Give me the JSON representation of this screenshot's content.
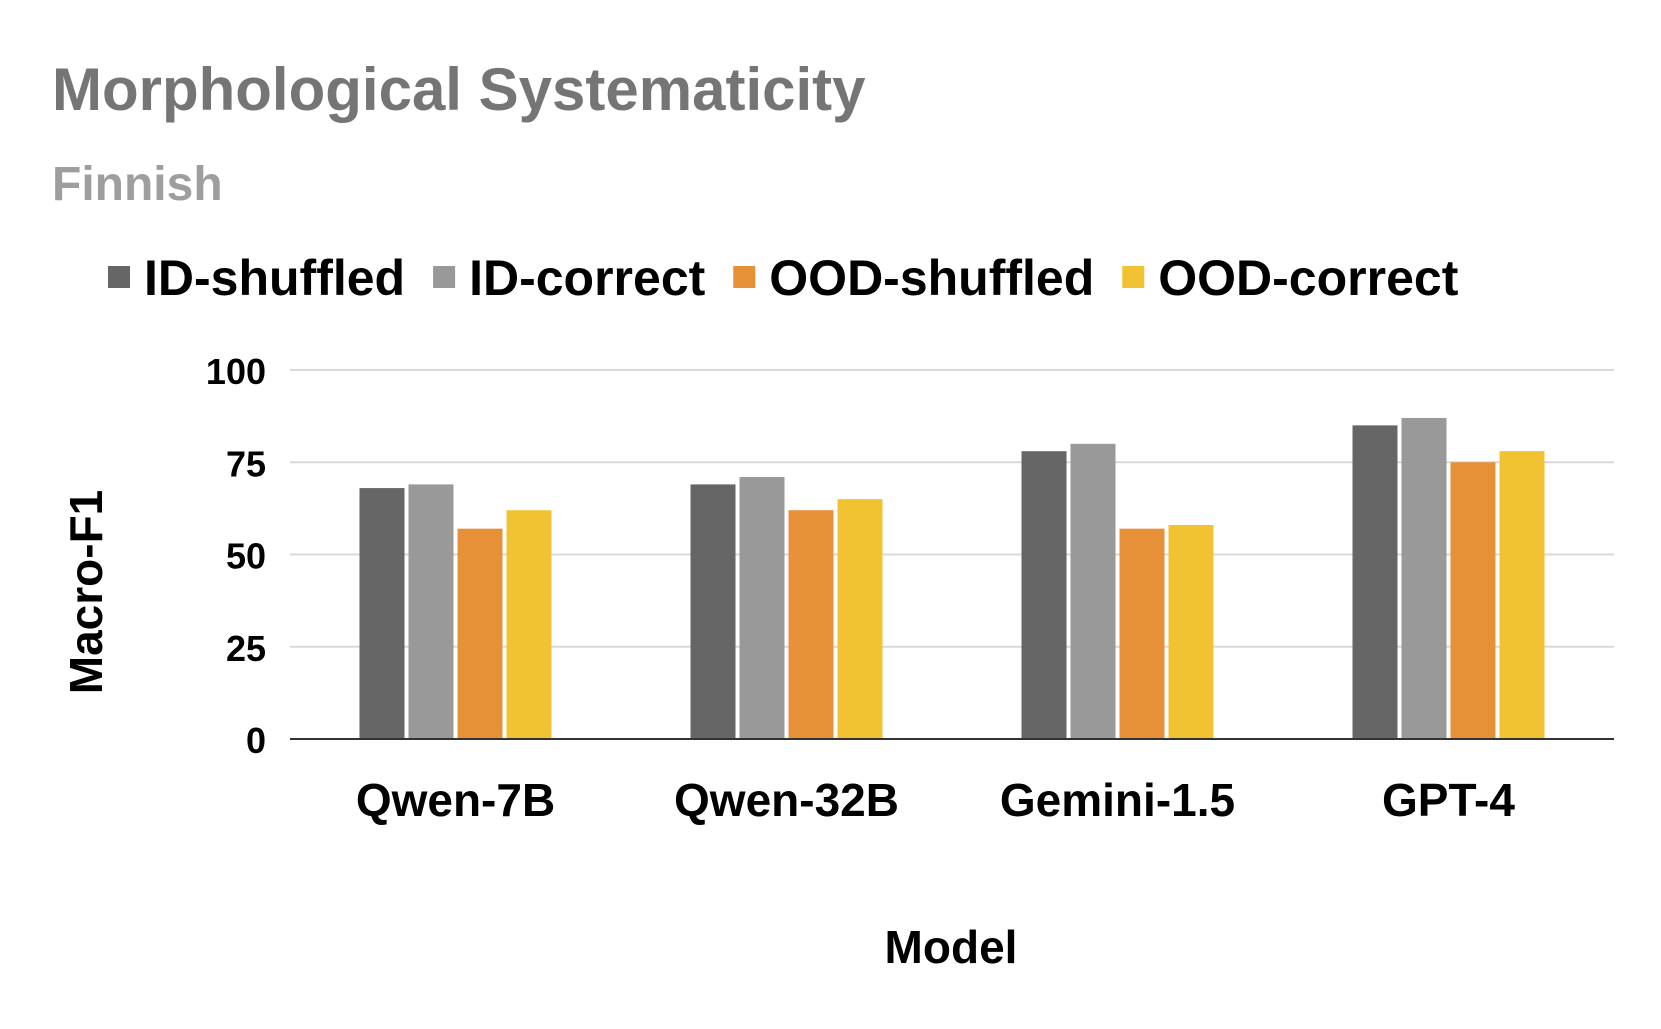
{
  "chart_data": {
    "type": "bar",
    "title": "Morphological Systematicity",
    "subtitle": "Finnish",
    "xlabel": "Model",
    "ylabel": "Macro-F1",
    "ylim": [
      0,
      100
    ],
    "yticks": [
      0,
      25,
      50,
      75,
      100
    ],
    "grid": true,
    "legend_position": "top",
    "categories": [
      "Qwen-7B",
      "Qwen-32B",
      "Gemini-1.5",
      "GPT-4"
    ],
    "series": [
      {
        "name": "ID-shuffled",
        "color": "#666666",
        "values": [
          68,
          69,
          78,
          85
        ]
      },
      {
        "name": "ID-correct",
        "color": "#999999",
        "values": [
          69,
          71,
          80,
          87
        ]
      },
      {
        "name": "OOD-shuffled",
        "color": "#e69138",
        "values": [
          57,
          62,
          57,
          75
        ]
      },
      {
        "name": "OOD-correct",
        "color": "#f1c232",
        "values": [
          62,
          65,
          58,
          78
        ]
      }
    ],
    "colors": {
      "title": "#757575",
      "subtitle": "#9e9e9e",
      "text": "#000000",
      "grid": "#d9d9d9",
      "axis": "#333333"
    }
  }
}
